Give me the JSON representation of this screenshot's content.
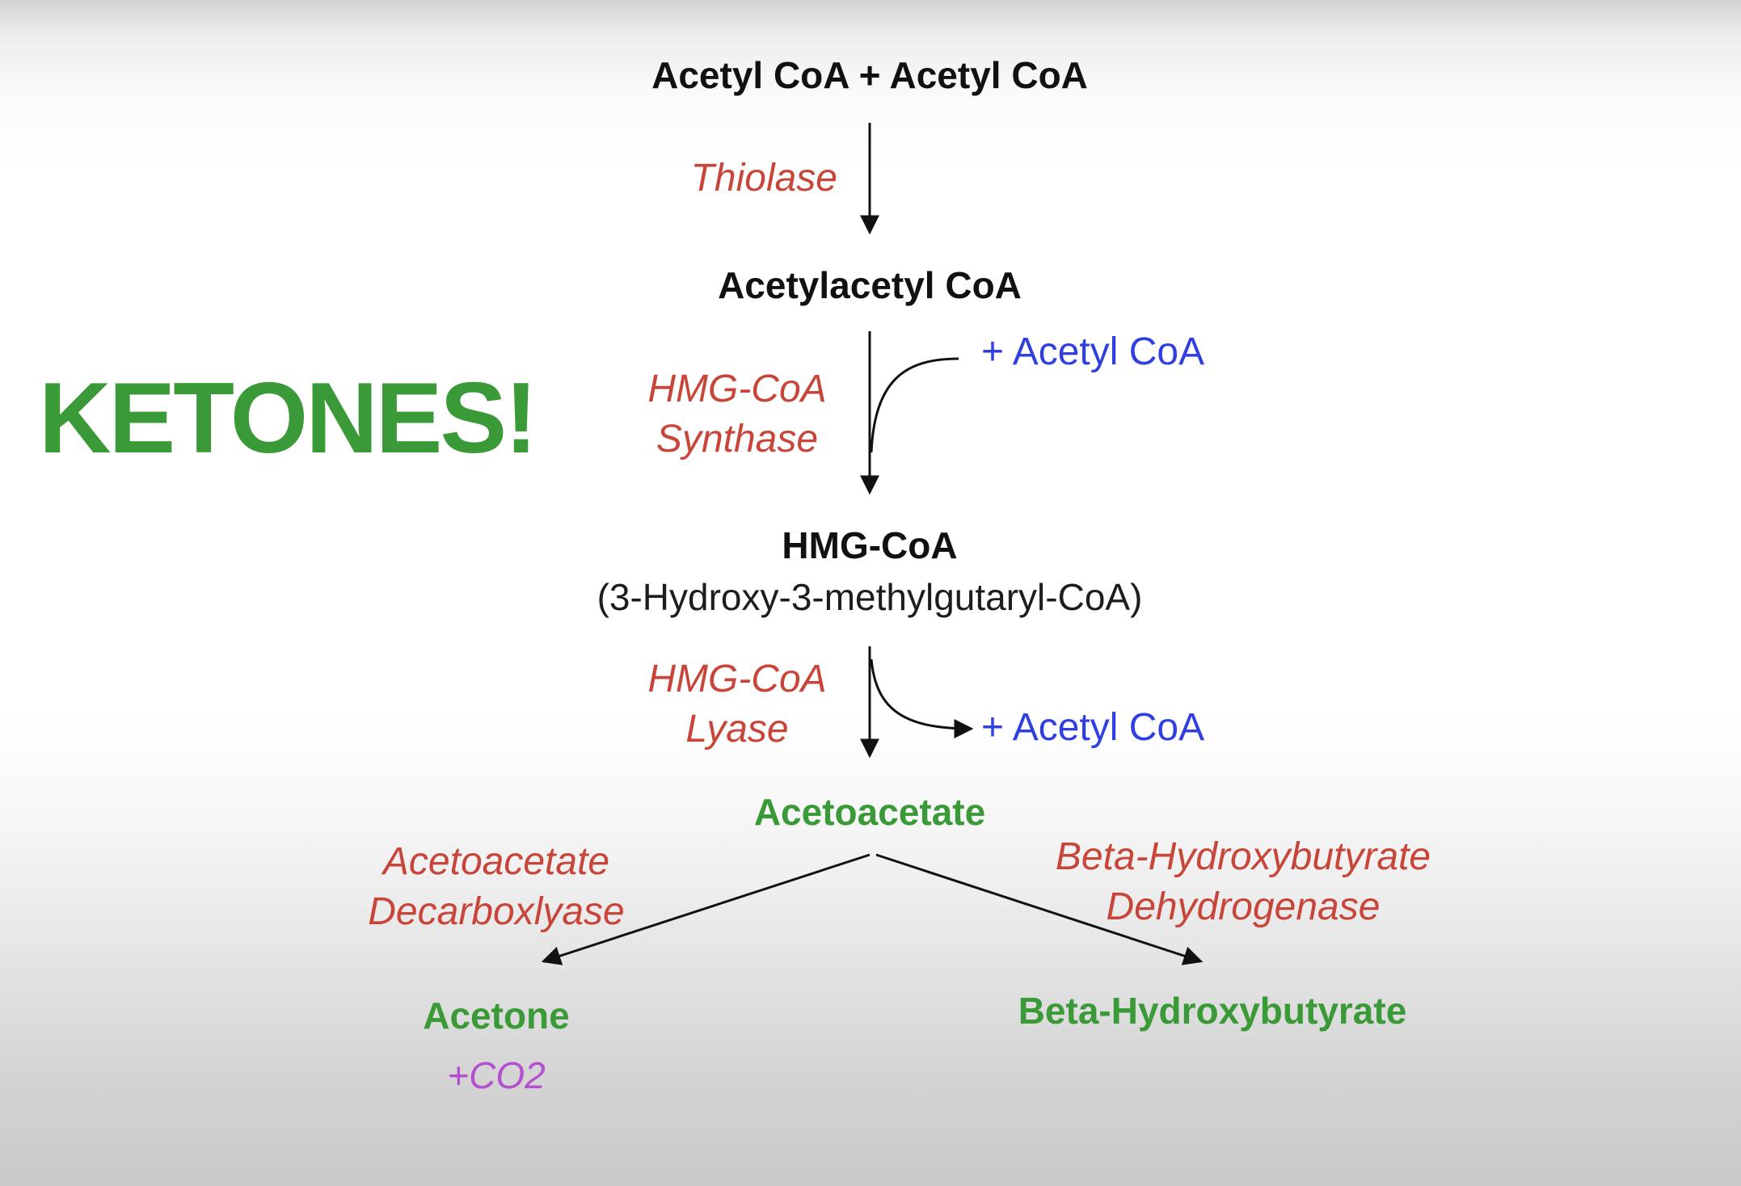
{
  "title": "KETONES!",
  "molecules": {
    "start": "Acetyl CoA + Acetyl CoA",
    "acetylacetyl": "Acetylacetyl CoA",
    "hmg": "HMG-CoA",
    "hmg_full": "(3-Hydroxy-3-methylgutaryl-CoA)",
    "acetoacetate": "Acetoacetate",
    "acetone": "Acetone",
    "bhb": "Beta-Hydroxybutyrate"
  },
  "enzymes": {
    "thiolase": "Thiolase",
    "hmg_synthase": [
      "HMG-CoA",
      "Synthase"
    ],
    "hmg_lyase": [
      "HMG-CoA",
      "Lyase"
    ],
    "decarboxylase": [
      "Acetoacetate",
      "Decarboxlyase"
    ],
    "dehydrogenase": [
      "Beta-Hydroxybutyrate",
      "Dehydrogenase"
    ]
  },
  "side_products": {
    "added_acetyl": "+ Acetyl CoA",
    "released_acetyl": "+ Acetyl CoA",
    "co2": "+CO2"
  },
  "colors": {
    "molecule": "#111111",
    "enzyme": "#c8453a",
    "side_product": "#2f3fe0",
    "ketone": "#3a9a37",
    "co2": "#b44fd0"
  }
}
